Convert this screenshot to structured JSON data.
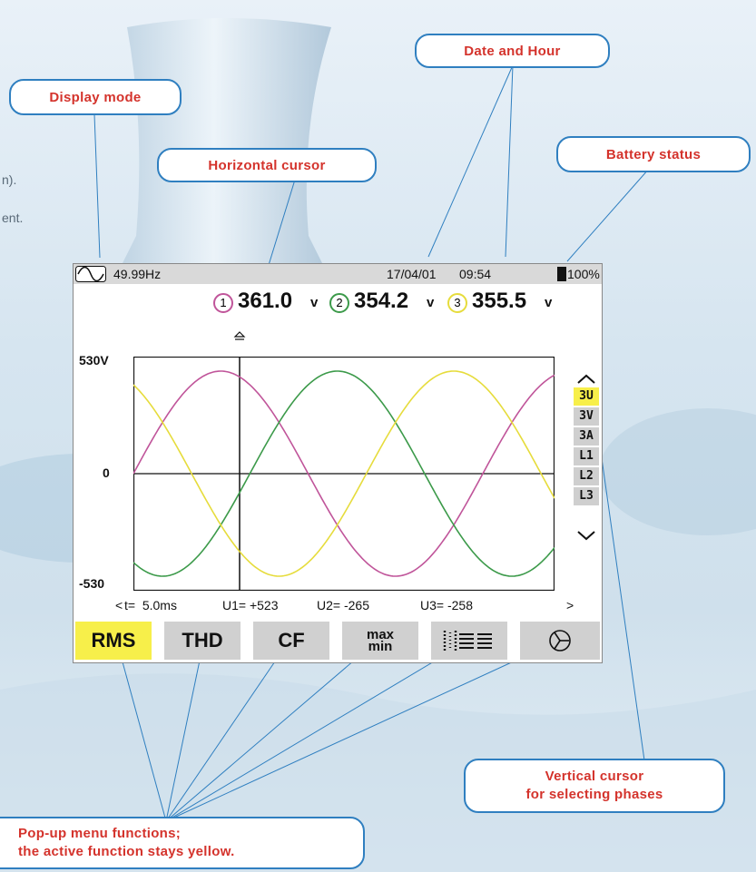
{
  "callouts": {
    "display_mode": "Display mode",
    "horizontal_cursor": "Horizontal cursor",
    "date_and_hour": "Date and Hour",
    "battery_status": "Battery status",
    "vertical_cursor_line1": "Vertical cursor",
    "vertical_cursor_line2": "for selecting phases",
    "popup_line1": "Pop-up menu functions;",
    "popup_line2": "the active function stays yellow."
  },
  "background_fragments": [
    "n).",
    "ent."
  ],
  "status_bar": {
    "frequency": "49.99Hz",
    "date": "17/04/01",
    "time": "09:54",
    "battery": "100%"
  },
  "measurements": [
    {
      "phase": "1",
      "value": "361.0",
      "unit": "v",
      "color": "#c0559a"
    },
    {
      "phase": "2",
      "value": "354.2",
      "unit": "v",
      "color": "#3c9a4a"
    },
    {
      "phase": "3",
      "value": "355.5",
      "unit": "v",
      "color": "#e6dc3c"
    }
  ],
  "y_axis": {
    "top": "530V",
    "zero": "0",
    "bottom": "-530"
  },
  "side_menu": {
    "items": [
      "3U",
      "3V",
      "3A",
      "L1",
      "L2",
      "L3"
    ],
    "active": "3U",
    "up_icon": "chevron-up-icon",
    "down_icon": "chevron-down-icon"
  },
  "cursor_readout": {
    "left_arrow": "<",
    "t": "t=  5.0ms",
    "u1": "U1= +523",
    "u2": "U2= -265",
    "u3": "U3= -258",
    "right_arrow": ">"
  },
  "function_tabs": {
    "rms": "RMS",
    "thd": "THD",
    "cf": "CF",
    "max": "max",
    "min": "min",
    "harmonics_icon": "harmonics-bars-icon",
    "phasor_icon": "phasor-diagram-icon",
    "active": "RMS"
  },
  "colors": {
    "active_yellow": "#f7ef4a",
    "inactive_gray": "#d0d0d0",
    "callout_border": "#2f7fc0",
    "callout_text": "#d4332c"
  }
}
